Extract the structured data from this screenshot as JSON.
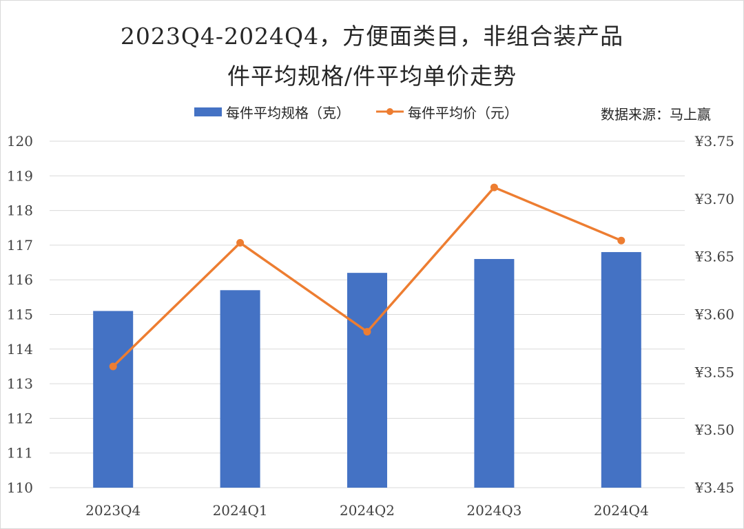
{
  "title_line_1": "2023Q4-2024Q4，方便面类目，非组合装产品",
  "title_line_2": "件平均规格/件平均单价走势",
  "source_note": "数据来源：马上赢",
  "colors": {
    "bar": "#4472c4",
    "line": "#ed7d31",
    "grid": "#d9d9d9"
  },
  "chart_data": {
    "type": "bar+line",
    "title": "2023Q4-2024Q4，方便面类目，非组合装产品 件平均规格/件平均单价走势",
    "categories": [
      "2023Q4",
      "2024Q1",
      "2024Q2",
      "2024Q3",
      "2024Q4"
    ],
    "series": [
      {
        "name": "每件平均规格（克）",
        "type": "bar",
        "axis": "left",
        "values": [
          115.1,
          115.7,
          116.2,
          116.6,
          116.8
        ]
      },
      {
        "name": "每件平均价（元）",
        "type": "line",
        "axis": "right",
        "values": [
          3.555,
          3.662,
          3.585,
          3.71,
          3.664
        ]
      }
    ],
    "y_left": {
      "min": 110,
      "max": 120,
      "ticks": [
        "110",
        "111",
        "112",
        "113",
        "114",
        "115",
        "116",
        "117",
        "118",
        "119",
        "120"
      ]
    },
    "y_right": {
      "min": 3.45,
      "max": 3.75,
      "ticks": [
        "¥3.45",
        "¥3.50",
        "¥3.55",
        "¥3.60",
        "¥3.65",
        "¥3.70",
        "¥3.75"
      ]
    },
    "grid": true,
    "legend_position": "top"
  }
}
